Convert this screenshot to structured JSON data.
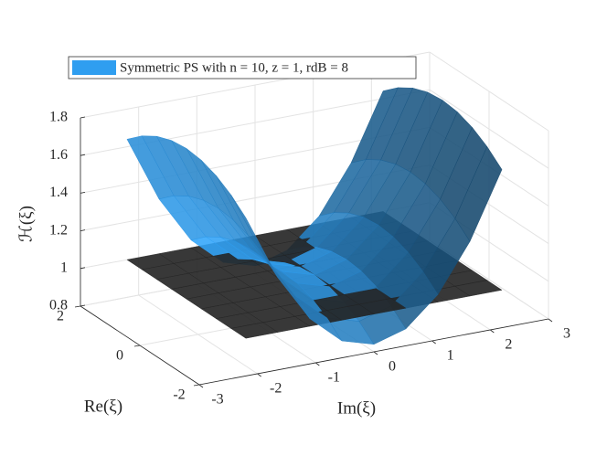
{
  "chart_data": {
    "type": "surface",
    "x_label": "Im(ξ)",
    "y_label": "Re(ξ)",
    "z_label": "ℋ(ξ)",
    "legend": "top-left",
    "x": [
      -2.2,
      -1.65,
      -1.1,
      -0.55,
      0,
      0.55,
      1.1,
      1.65,
      2.2
    ],
    "y": [
      -2,
      -1.5,
      -1,
      -0.5,
      0,
      0.5,
      1,
      1.5,
      2
    ],
    "series": [
      {
        "name": "Symmetric PS with n = 10,  z = 1,  rdB = 8",
        "color": "#2f9ef0",
        "values": [
          [
            1.64,
            1.29,
            1.04,
            0.89,
            0.84,
            0.89,
            1.04,
            1.29,
            1.64
          ],
          [
            1.71,
            1.36,
            1.11,
            0.96,
            0.91,
            0.96,
            1.11,
            1.36,
            1.71
          ],
          [
            1.76,
            1.41,
            1.16,
            1.01,
            0.96,
            1.01,
            1.16,
            1.41,
            1.76
          ],
          [
            1.79,
            1.44,
            1.19,
            1.04,
            0.99,
            1.04,
            1.19,
            1.44,
            1.79
          ],
          [
            1.8,
            1.45,
            1.2,
            1.05,
            1.0,
            1.05,
            1.2,
            1.45,
            1.8
          ],
          [
            1.79,
            1.44,
            1.19,
            1.04,
            0.99,
            1.04,
            1.19,
            1.44,
            1.79
          ],
          [
            1.76,
            1.41,
            1.16,
            1.01,
            0.96,
            1.01,
            1.16,
            1.41,
            1.76
          ],
          [
            1.71,
            1.36,
            1.11,
            0.96,
            0.91,
            0.96,
            1.11,
            1.36,
            1.71
          ],
          [
            1.64,
            1.29,
            1.04,
            0.89,
            0.84,
            0.89,
            1.04,
            1.29,
            1.64
          ]
        ]
      }
    ],
    "plane": {
      "value": 1,
      "color": "#222222"
    },
    "xlim": [
      -3,
      3
    ],
    "xticks": [
      -3,
      -2,
      -1,
      0,
      1,
      2,
      3
    ],
    "ylim": [
      -2,
      2
    ],
    "yticks": [
      -2,
      0,
      2
    ],
    "zlim": [
      0.8,
      1.8
    ],
    "zticks": [
      0.8,
      1,
      1.2,
      1.4,
      1.6,
      1.8
    ],
    "grid": true
  }
}
